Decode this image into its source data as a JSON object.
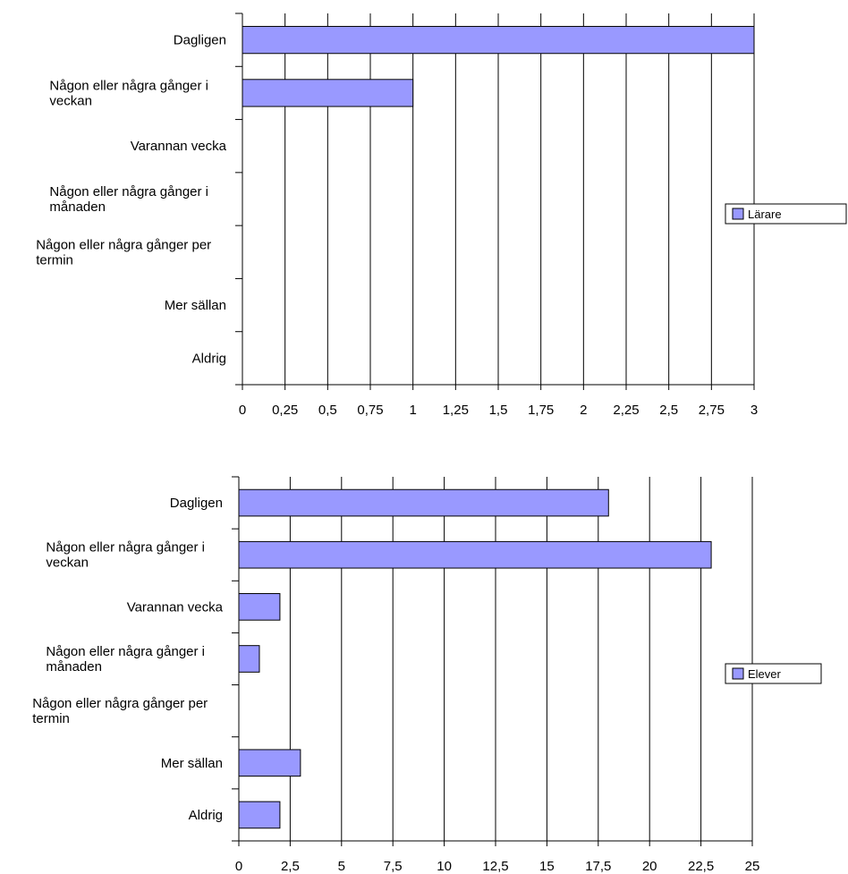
{
  "chart_data": [
    {
      "type": "bar",
      "orientation": "horizontal",
      "categories": [
        [
          "Dagligen"
        ],
        [
          "Någon eller några gånger i",
          "veckan"
        ],
        [
          "Varannan vecka"
        ],
        [
          "Någon eller några gånger i",
          "månaden"
        ],
        [
          "Någon eller några gånger per",
          "termin"
        ],
        [
          "Mer sällan"
        ],
        [
          "Aldrig"
        ]
      ],
      "series": [
        {
          "name": "Lärare",
          "values": [
            3,
            1,
            0,
            0,
            0,
            0,
            0
          ]
        }
      ],
      "xticks": [
        "0",
        "0,25",
        "0,5",
        "0,75",
        "1",
        "1,25",
        "1,5",
        "1,75",
        "2",
        "2,25",
        "2,5",
        "2,75",
        "3"
      ],
      "xlim": [
        0,
        3
      ],
      "grid": true,
      "legend_position": "right",
      "bar_color": "#9999ff"
    },
    {
      "type": "bar",
      "orientation": "horizontal",
      "categories": [
        [
          "Dagligen"
        ],
        [
          "Någon eller några gånger i",
          "veckan"
        ],
        [
          "Varannan vecka"
        ],
        [
          "Någon eller några gånger i",
          "månaden"
        ],
        [
          "Någon eller några gånger per",
          "termin"
        ],
        [
          "Mer sällan"
        ],
        [
          "Aldrig"
        ]
      ],
      "series": [
        {
          "name": "Elever",
          "values": [
            18,
            23,
            2,
            1,
            0,
            3,
            2
          ]
        }
      ],
      "xticks": [
        "0",
        "2,5",
        "5",
        "7,5",
        "10",
        "12,5",
        "15",
        "17,5",
        "20",
        "22,5",
        "25"
      ],
      "xlim": [
        0,
        25
      ],
      "grid": true,
      "legend_position": "right",
      "bar_color": "#9999ff"
    }
  ]
}
